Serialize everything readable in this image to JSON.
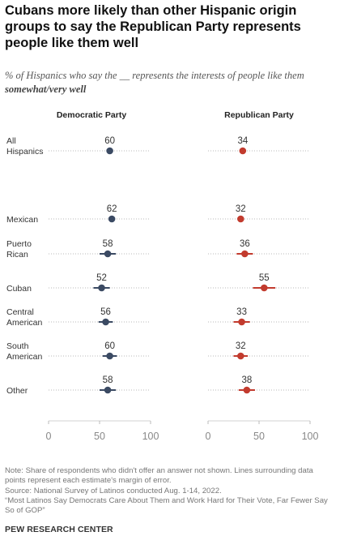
{
  "title": "Cubans more likely than other Hispanic origin groups to say the Republican Party represents people like them well",
  "subtitle": {
    "line1": "% of Hispanics who say the __ represents the interests of people like them",
    "line2": "somewhat/very well"
  },
  "notes": {
    "note": "Note: Share of respondents who didn't offer an answer not shown. Lines surrounding data points represent each estimate's margin of error.",
    "source": "Source: National Survey of Latinos conducted Aug. 1-14, 2022.",
    "report": "“Most Latinos Say Democrats Care About Them and Work Hard for Their Vote, Far Fewer Say So of GOP”"
  },
  "brand": "PEW RESEARCH CENTER",
  "colors": {
    "democratic": "#3b4a63",
    "republican": "#c23b2e",
    "dots": "#b8b8b8"
  },
  "chart_data": {
    "type": "dot",
    "categories": [
      {
        "lines": [
          "All",
          "Hispanics"
        ]
      },
      {
        "lines": [
          "Mexican"
        ]
      },
      {
        "lines": [
          "Puerto",
          "Rican"
        ]
      },
      {
        "lines": [
          "Cuban"
        ]
      },
      {
        "lines": [
          "Central",
          "American"
        ]
      },
      {
        "lines": [
          "South",
          "American"
        ]
      },
      {
        "lines": [
          "Other"
        ]
      }
    ],
    "xlim": [
      0,
      100
    ],
    "xticks": [
      0,
      50,
      100
    ],
    "panels": [
      {
        "name": "Democratic Party",
        "color": "#3b4a63",
        "values": [
          60,
          62,
          58,
          52,
          56,
          60,
          58
        ],
        "moe": [
          0,
          0,
          8,
          8,
          7,
          7,
          8
        ]
      },
      {
        "name": "Republican Party",
        "color": "#c23b2e",
        "values": [
          34,
          32,
          36,
          55,
          33,
          32,
          38
        ],
        "moe": [
          0,
          0,
          8,
          11,
          8,
          7,
          8
        ]
      }
    ]
  }
}
